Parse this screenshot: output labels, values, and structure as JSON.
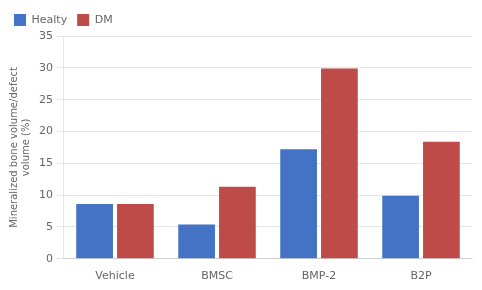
{
  "chart_data": {
    "type": "bar",
    "categories": [
      "Vehicle",
      "BMSC",
      "BMP-2",
      "B2P"
    ],
    "series": [
      {
        "name": "Healty",
        "color": "#4472C4",
        "values": [
          8.6,
          5.4,
          17.2,
          9.9
        ]
      },
      {
        "name": "DM",
        "color": "#BE4B48",
        "values": [
          8.6,
          11.3,
          29.9,
          18.4
        ]
      }
    ],
    "ylabel": "Mineralized bone volume/defect\nvolume (%)",
    "ylim": [
      0,
      35
    ],
    "yticks": [
      0,
      5,
      10,
      15,
      20,
      25,
      30,
      35
    ],
    "grid": true,
    "legend": "upper left"
  }
}
